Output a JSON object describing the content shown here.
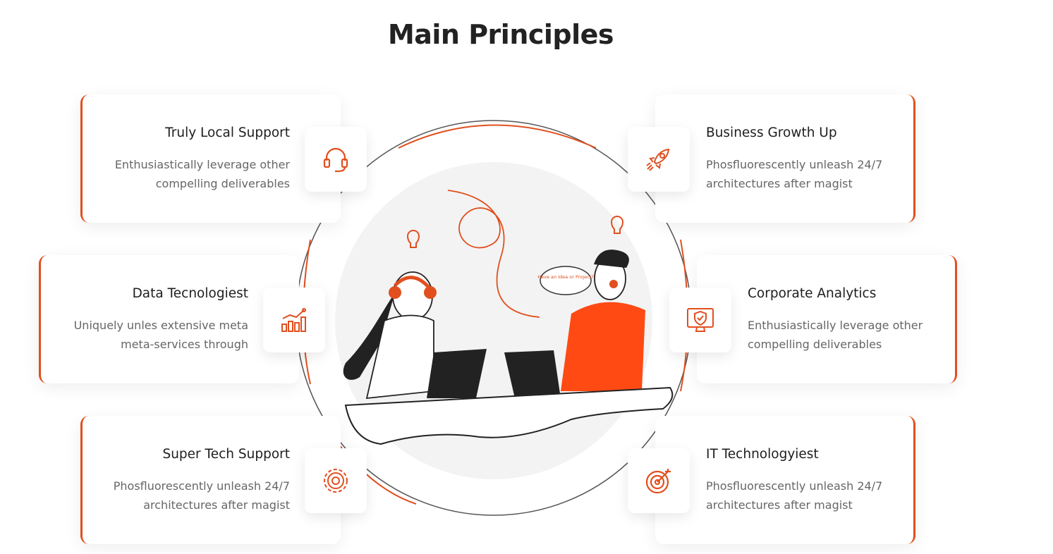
{
  "section": {
    "title": "Main Principles"
  },
  "illustration": {
    "thought_bubble": "Have an Idea or Project?"
  },
  "principles": [
    {
      "title": "Truly Local Support",
      "desc_line1": "Enthusiastically leverage other",
      "desc_line2": "compelling deliverables",
      "icon": "headset-icon"
    },
    {
      "title": "Business Growth Up",
      "desc_line1": "Phosfluorescently unleash 24/7",
      "desc_line2": "architectures after magist",
      "icon": "rocket-icon"
    },
    {
      "title": "Data Tecnologiest",
      "desc_line1": "Uniquely unles extensive meta",
      "desc_line2": "meta-services through",
      "icon": "bar-chart-icon"
    },
    {
      "title": "Corporate Analytics",
      "desc_line1": "Enthusiastically leverage other",
      "desc_line2": "compelling deliverables",
      "icon": "shield-monitor-icon"
    },
    {
      "title": "Super Tech Support",
      "desc_line1": "Phosfluorescently unleash 24/7",
      "desc_line2": "architectures after magist",
      "icon": "gear-icon"
    },
    {
      "title": "IT Technologyiest",
      "desc_line1": "Phosfluorescently unleash 24/7",
      "desc_line2": "architectures after magist",
      "icon": "target-icon"
    }
  ],
  "colors": {
    "accent": "#e14f1e",
    "title": "#222222",
    "text": "#666666"
  }
}
